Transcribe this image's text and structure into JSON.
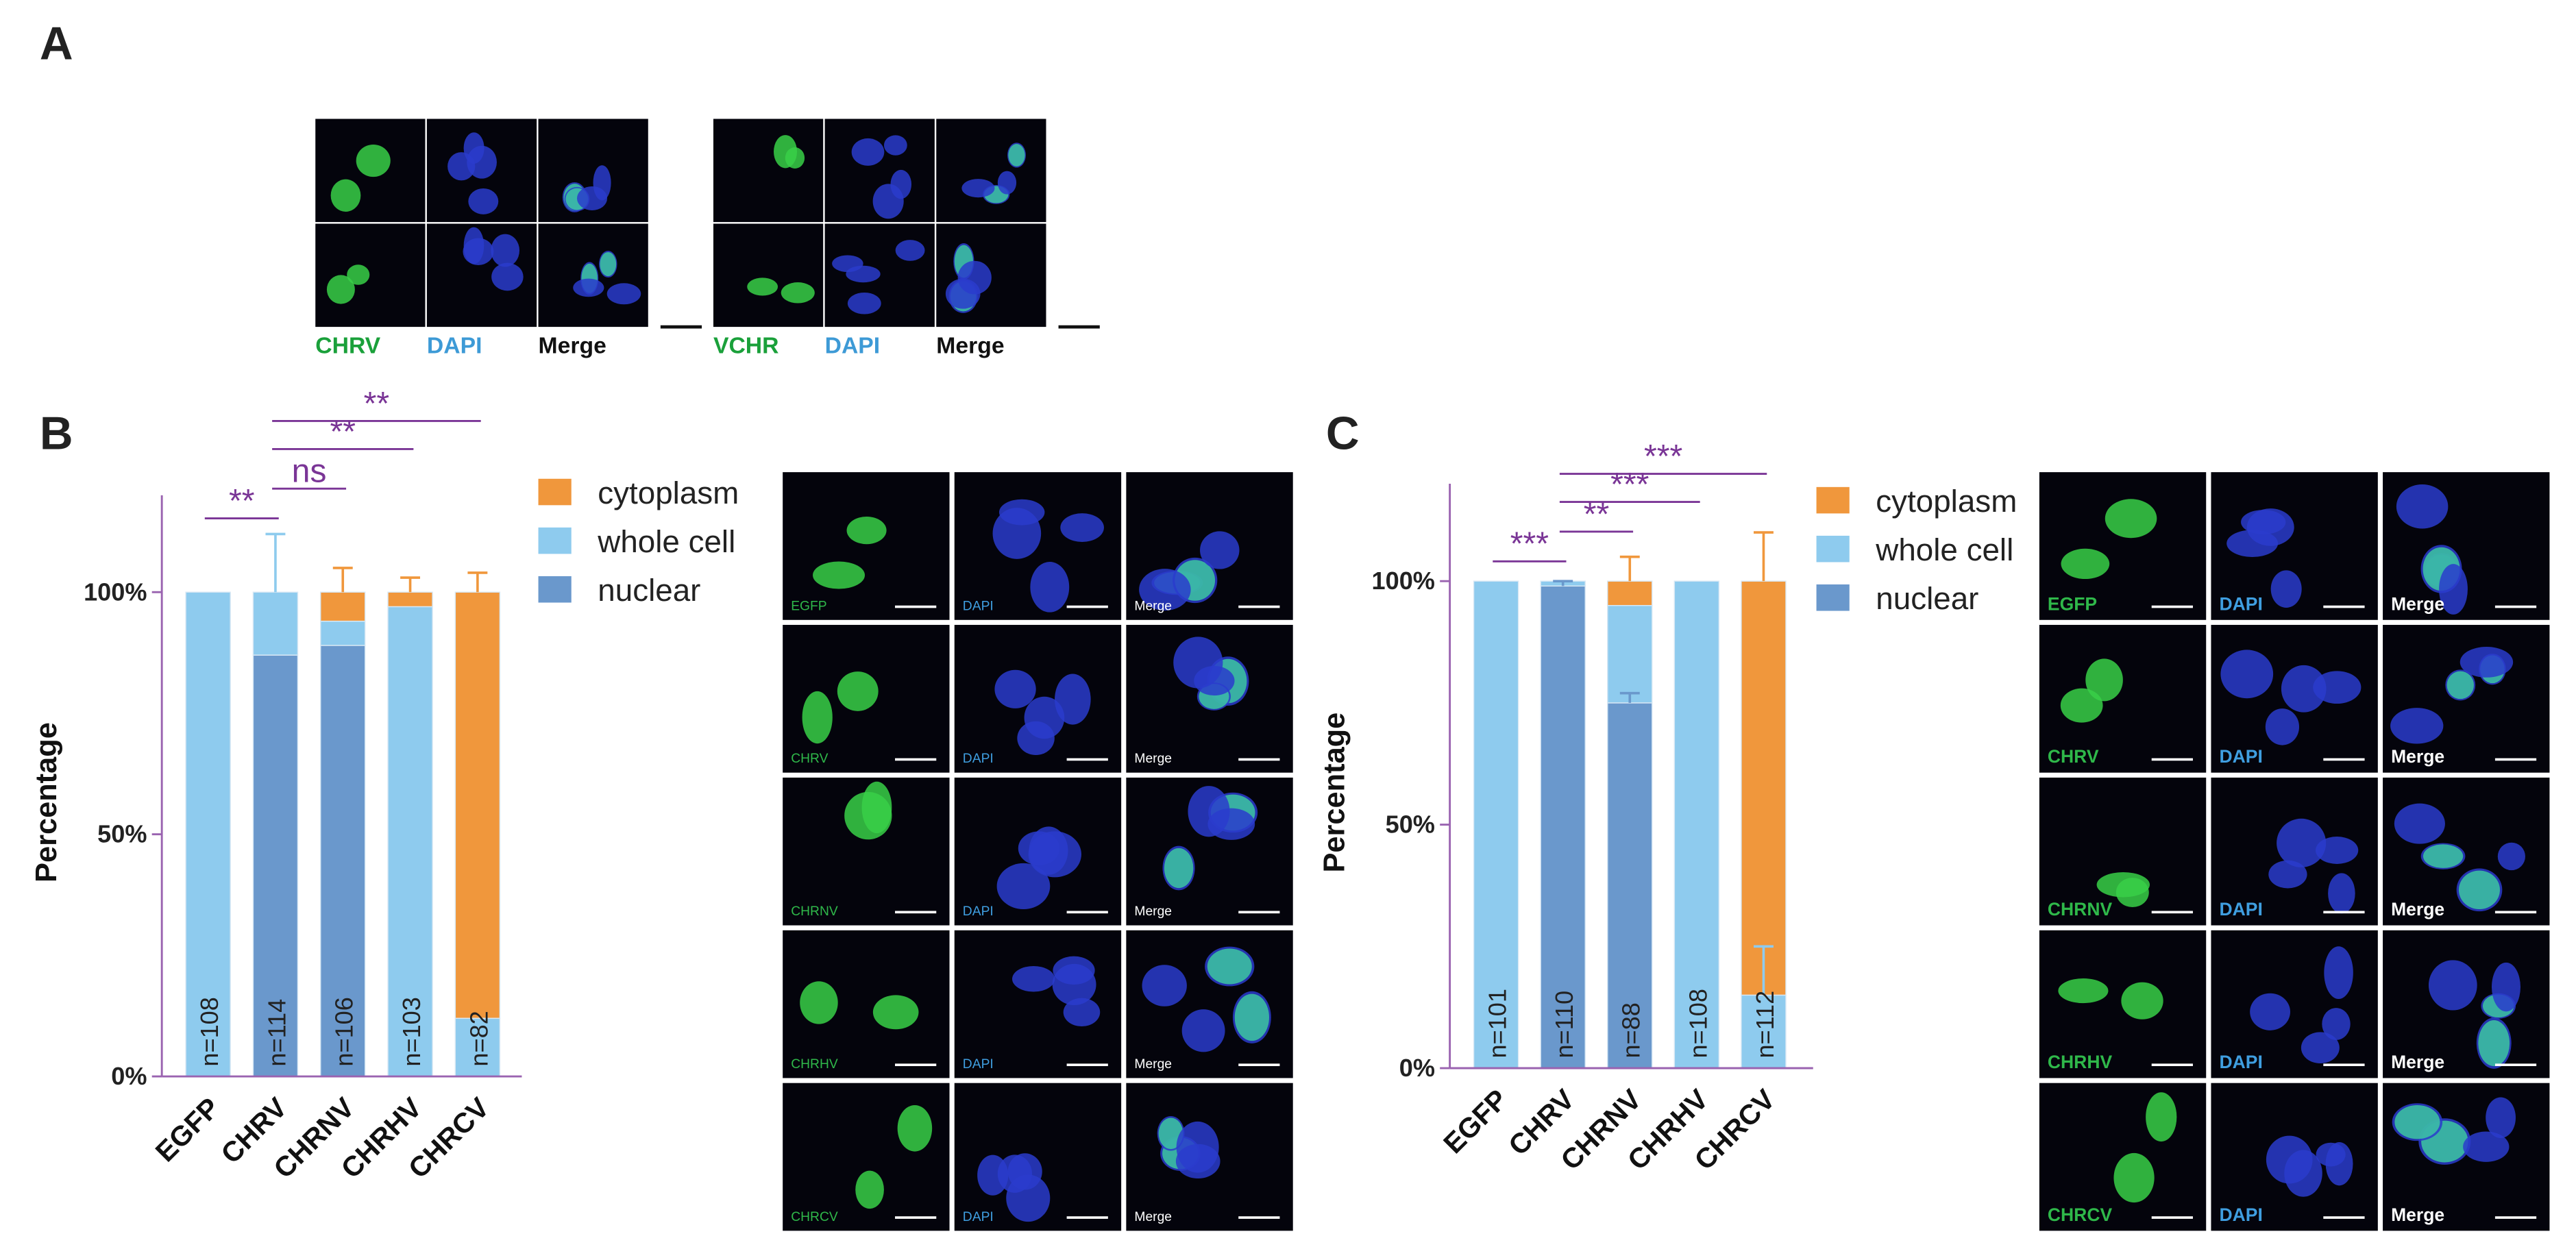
{
  "panels": {
    "A": {
      "label": "A",
      "groups": [
        {
          "labels": [
            "CHRV",
            "DAPI",
            "Merge"
          ]
        },
        {
          "labels": [
            "VCHR",
            "DAPI",
            "Merge"
          ]
        }
      ]
    },
    "B": {
      "label": "B",
      "image_rows": [
        [
          "EGFP",
          "DAPI",
          "Merge"
        ],
        [
          "CHRV",
          "DAPI",
          "Merge"
        ],
        [
          "CHRNV",
          "DAPI",
          "Merge"
        ],
        [
          "CHRHV",
          "DAPI",
          "Merge"
        ],
        [
          "CHRCV",
          "DAPI",
          "Merge"
        ]
      ]
    },
    "C": {
      "label": "C",
      "image_rows": [
        [
          "EGFP",
          "DAPI",
          "Merge"
        ],
        [
          "CHRV",
          "DAPI",
          "Merge"
        ],
        [
          "CHRNV",
          "DAPI",
          "Merge"
        ],
        [
          "CHRHV",
          "DAPI",
          "Merge"
        ],
        [
          "CHRCV",
          "DAPI",
          "Merge"
        ]
      ]
    }
  },
  "chart_data": [
    {
      "type": "stacked_bar",
      "ylabel": "Percentage",
      "categories": [
        "EGFP",
        "CHRV",
        "CHRNV",
        "CHRHV",
        "CHRCV"
      ],
      "series": [
        {
          "name": "nuclear",
          "color": "#6a98cc",
          "values": [
            0,
            87,
            89,
            0,
            0
          ]
        },
        {
          "name": "whole cell",
          "color": "#8ecbee",
          "values": [
            100,
            13,
            5,
            97,
            12
          ],
          "errors": [
            null,
            12,
            null,
            null,
            null
          ]
        },
        {
          "name": "cytoplasm",
          "color": "#f0973c",
          "values": [
            0,
            0,
            6,
            3,
            88
          ],
          "errors": [
            null,
            null,
            5,
            3,
            4
          ]
        }
      ],
      "n_labels": [
        "n=108",
        "n=114",
        "n=106",
        "n=103",
        "n=82"
      ],
      "ylim": [
        0,
        120
      ],
      "yticks": [
        {
          "value": 0,
          "label": "0%"
        },
        {
          "value": 50,
          "label": "50%"
        },
        {
          "value": 100,
          "label": "100%"
        }
      ],
      "legend": "right",
      "annotations": [
        {
          "text": "**",
          "from": "EGFP",
          "to": "CHRV"
        },
        {
          "text": "ns",
          "from": "CHRV",
          "to": "CHRNV"
        },
        {
          "text": "**",
          "from": "CHRV",
          "to": "CHRHV"
        },
        {
          "text": "**",
          "from": "CHRV",
          "to": "CHRCV"
        }
      ]
    },
    {
      "type": "stacked_bar",
      "ylabel": "Percentage",
      "categories": [
        "EGFP",
        "CHRV",
        "CHRNV",
        "CHRHV",
        "CHRCV"
      ],
      "series": [
        {
          "name": "nuclear",
          "color": "#6a98cc",
          "values": [
            0,
            99,
            75,
            0,
            0
          ],
          "errors": [
            null,
            1,
            2,
            null,
            null
          ]
        },
        {
          "name": "whole cell",
          "color": "#8ecbee",
          "values": [
            100,
            1,
            20,
            100,
            15
          ],
          "errors": [
            null,
            null,
            null,
            null,
            10
          ]
        },
        {
          "name": "cytoplasm",
          "color": "#f0973c",
          "values": [
            0,
            0,
            5,
            0,
            85
          ],
          "errors": [
            null,
            null,
            5,
            null,
            10
          ]
        }
      ],
      "n_labels": [
        "n=101",
        "n=110",
        "n=88",
        "n=108",
        "n=112"
      ],
      "ylim": [
        0,
        120
      ],
      "yticks": [
        {
          "value": 0,
          "label": "0%"
        },
        {
          "value": 50,
          "label": "50%"
        },
        {
          "value": 100,
          "label": "100%"
        }
      ],
      "legend": "right",
      "annotations": [
        {
          "text": "***",
          "from": "EGFP",
          "to": "CHRV"
        },
        {
          "text": "**",
          "from": "CHRV",
          "to": "CHRNV"
        },
        {
          "text": "***",
          "from": "CHRV",
          "to": "CHRHV"
        },
        {
          "text": "***",
          "from": "CHRV",
          "to": "CHRCV"
        }
      ]
    }
  ]
}
